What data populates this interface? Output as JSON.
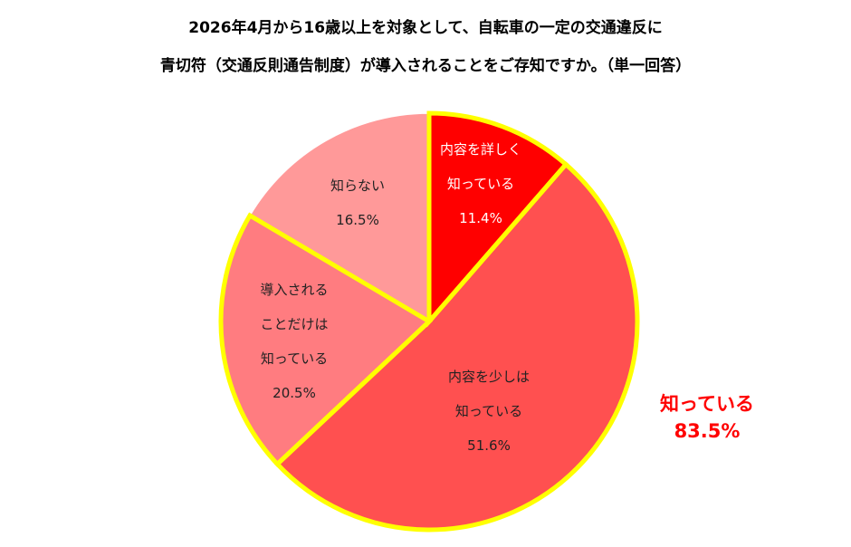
{
  "title_line1": "2026年4月から16歳以上を対象として、自転車の一定の交通違反に",
  "title_line2": "青切符（交通反則通告制度）が導入されることをご存知ですか。（単一回答）",
  "callout": {
    "line1": "知っている",
    "line2": "83.5%",
    "color": "#ff0000"
  },
  "chart_data": {
    "type": "pie",
    "start": "12 o'clock, clockwise",
    "highlight_color": "#ffff00",
    "slices": [
      {
        "label_lines": [
          "内容を詳しく",
          "知っている"
        ],
        "value_label": "11.4%",
        "value": 11.4,
        "color": "#ff0000",
        "highlight": true
      },
      {
        "label_lines": [
          "内容を少しは",
          "知っている"
        ],
        "value_label": "51.6%",
        "value": 51.6,
        "color": "#ff5050",
        "highlight": true
      },
      {
        "label_lines": [
          "導入される",
          "ことだけは",
          "知っている"
        ],
        "value_label": "20.5%",
        "value": 20.5,
        "color": "#ff7c80",
        "highlight": true
      },
      {
        "label_lines": [
          "知らない"
        ],
        "value_label": "16.5%",
        "value": 16.5,
        "color": "#ff9999",
        "highlight": false
      }
    ]
  }
}
